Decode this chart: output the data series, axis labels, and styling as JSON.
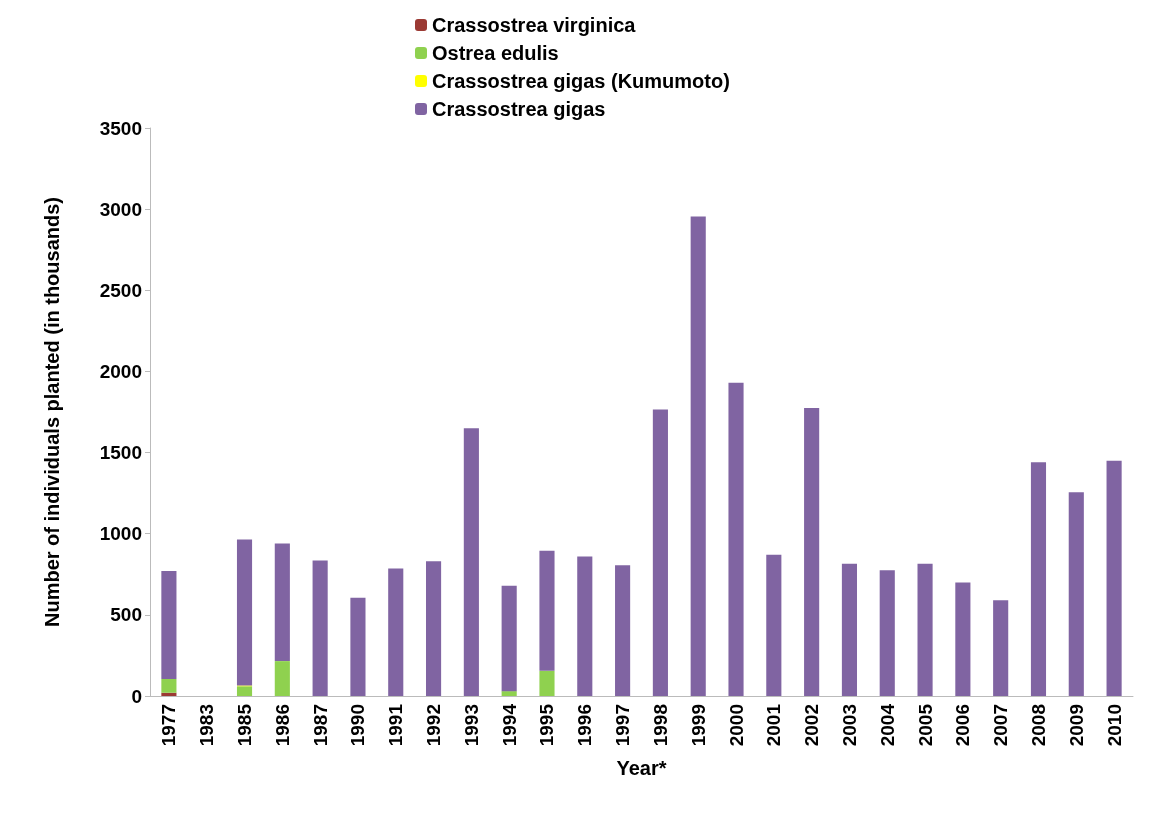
{
  "chart_data": {
    "type": "bar",
    "stacked": true,
    "xlabel": "Year*",
    "ylabel": "Number of individuals planted (in thousands)",
    "categories": [
      "1977",
      "1983",
      "1985",
      "1986",
      "1987",
      "1990",
      "1991",
      "1992",
      "1993",
      "1994",
      "1995",
      "1996",
      "1997",
      "1998",
      "1999",
      "2000",
      "2001",
      "2002",
      "2003",
      "2004",
      "2005",
      "2006",
      "2007",
      "2008",
      "2009",
      "2010"
    ],
    "series": [
      {
        "name": "Crassostrea virginica",
        "color": "#9b3a34",
        "values": [
          20,
          0,
          0,
          0,
          0,
          0,
          0,
          0,
          0,
          0,
          0,
          0,
          0,
          0,
          0,
          0,
          0,
          0,
          0,
          0,
          0,
          0,
          0,
          0,
          0,
          0
        ]
      },
      {
        "name": "Ostrea edulis",
        "color": "#8fd14f",
        "values": [
          85,
          0,
          60,
          215,
          0,
          0,
          0,
          0,
          0,
          30,
          155,
          0,
          0,
          0,
          0,
          0,
          0,
          0,
          0,
          0,
          0,
          0,
          0,
          0,
          0,
          0
        ]
      },
      {
        "name": "Crassostrea gigas (Kumumoto)",
        "color": "#ffff00",
        "values": [
          0,
          0,
          5,
          0,
          0,
          0,
          0,
          0,
          0,
          0,
          0,
          0,
          0,
          0,
          0,
          0,
          0,
          0,
          0,
          0,
          0,
          0,
          0,
          0,
          0,
          0
        ]
      },
      {
        "name": "Crassostrea gigas",
        "color": "#8064a2",
        "values": [
          665,
          0,
          900,
          725,
          835,
          605,
          785,
          830,
          1650,
          650,
          740,
          860,
          805,
          1765,
          2955,
          1930,
          870,
          1775,
          815,
          775,
          815,
          700,
          590,
          1440,
          1255,
          1450
        ]
      }
    ],
    "ylim": [
      0,
      3500
    ],
    "yticks": [
      0,
      500,
      1000,
      1500,
      2000,
      2500,
      3000,
      3500
    ],
    "grid": false,
    "legend": "top"
  }
}
